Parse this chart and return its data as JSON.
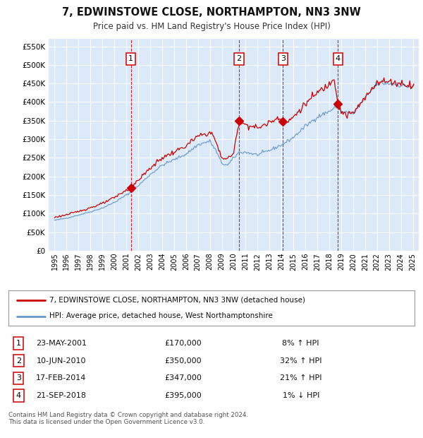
{
  "title": "7, EDWINSTOWE CLOSE, NORTHAMPTON, NN3 3NW",
  "subtitle": "Price paid vs. HM Land Registry's House Price Index (HPI)",
  "footer": "Contains HM Land Registry data © Crown copyright and database right 2024.\nThis data is licensed under the Open Government Licence v3.0.",
  "legend_line1": "7, EDWINSTOWE CLOSE, NORTHAMPTON, NN3 3NW (detached house)",
  "legend_line2": "HPI: Average price, detached house, West Northamptonshire",
  "transactions": [
    {
      "num": 1,
      "date": "23-MAY-2001",
      "price": 170000,
      "pct": "8%",
      "dir": "↑"
    },
    {
      "num": 2,
      "date": "10-JUN-2010",
      "price": 350000,
      "pct": "32%",
      "dir": "↑"
    },
    {
      "num": 3,
      "date": "17-FEB-2014",
      "price": 347000,
      "pct": "21%",
      "dir": "↑"
    },
    {
      "num": 4,
      "date": "21-SEP-2018",
      "price": 395000,
      "pct": "1%",
      "dir": "↓"
    }
  ],
  "transaction_dates_decimal": [
    2001.39,
    2010.44,
    2014.13,
    2018.73
  ],
  "trans_prices": [
    170000,
    350000,
    347000,
    395000
  ],
  "ylim": [
    0,
    570000
  ],
  "yticks": [
    0,
    50000,
    100000,
    150000,
    200000,
    250000,
    300000,
    350000,
    400000,
    450000,
    500000,
    550000
  ],
  "xlim_start": 1994.5,
  "xlim_end": 2025.5,
  "background_color": "#dce9f8",
  "red_line_color": "#cc0000",
  "blue_line_color": "#6699cc",
  "marker_color": "#cc0000",
  "dashed_line_color": "#cc0000",
  "box_color": "#cc0000",
  "grid_color": "#ffffff"
}
